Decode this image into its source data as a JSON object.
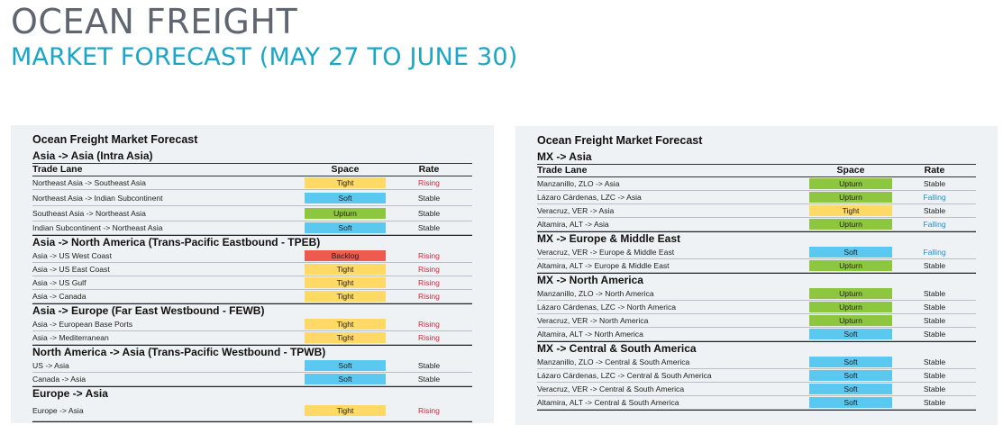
{
  "header": {
    "title": "OCEAN FREIGHT",
    "subtitle": "MARKET FORECAST (MAY 27 TO JUNE 30)"
  },
  "colors": {
    "Tight": "#ffd966",
    "Soft": "#5bc8ef",
    "Upturn": "#8dc63f",
    "Backlog": "#ef5a4e"
  },
  "panels": [
    {
      "title": "Ocean Freight Market Forecast",
      "columns": [
        "Trade Lane",
        "Space",
        "Rate"
      ],
      "sections": [
        {
          "title": "Asia -> Asia (Intra Asia)",
          "show_columns": true,
          "rows": [
            {
              "lane": "Northeast Asia -> Southeast Asia",
              "space": "Tight",
              "rate": "Rising",
              "h": 14
            },
            {
              "lane": "Northeast Asia -> Indian Subcontinent",
              "space": "Soft",
              "rate": "Stable",
              "h": 17
            },
            {
              "lane": "Southeast Asia -> Northeast Asia",
              "space": "Upturn",
              "rate": "Stable",
              "h": 16
            },
            {
              "lane": "Indian Subcontinent -> Northeast Asia",
              "space": "Soft",
              "rate": "Stable",
              "h": 14
            }
          ]
        },
        {
          "title": "Asia -> North America (Trans-Pacific Eastbound - TPEB)",
          "rows": [
            {
              "lane": "Asia -> US West Coast",
              "space": "Backlog",
              "rate": "Rising",
              "h": 14
            },
            {
              "lane": "Asia -> US East Coast",
              "space": "Tight",
              "rate": "Rising",
              "h": 14
            },
            {
              "lane": "Asia -> US Gulf",
              "space": "Tight",
              "rate": "Rising",
              "h": 14
            },
            {
              "lane": "Asia -> Canada",
              "space": "Tight",
              "rate": "Rising",
              "h": 14
            }
          ]
        },
        {
          "title": "Asia -> Europe (Far East Westbound - FEWB)",
          "rows": [
            {
              "lane": "Asia -> European Base Ports",
              "space": "Tight",
              "rate": "Rising",
              "h": 14
            },
            {
              "lane": "Asia -> Mediterranean",
              "space": "Tight",
              "rate": "Rising",
              "h": 14
            }
          ]
        },
        {
          "title": "North America  -> Asia (Trans-Pacific Westbound - TPWB)",
          "rows": [
            {
              "lane": "US -> Asia",
              "space": "Soft",
              "rate": "Stable",
              "h": 14
            },
            {
              "lane": "Canada -> Asia",
              "space": "Soft",
              "rate": "Stable",
              "h": 14
            }
          ]
        },
        {
          "title": "Europe -> Asia",
          "rows": [
            {
              "lane": "Europe -> Asia",
              "space": "Tight",
              "rate": "Rising",
              "h": 22
            }
          ]
        }
      ]
    },
    {
      "title": "Ocean Freight Market Forecast",
      "columns": [
        "Trade Lane",
        "Space",
        "Rate"
      ],
      "sections": [
        {
          "title": "MX -> Asia",
          "show_columns": true,
          "rows": [
            {
              "lane": "Manzanillo, ZLO -> Asia",
              "space": "Upturn",
              "rate": "Stable",
              "h": 14
            },
            {
              "lane": "Lázaro Cárdenas, LZC -> Asia",
              "space": "Upturn",
              "rate": "Falling",
              "h": 14
            },
            {
              "lane": "Veracruz, VER -> Asia",
              "space": "Tight",
              "rate": "Stable",
              "h": 14
            },
            {
              "lane": "Altamira, ALT -> Asia",
              "space": "Upturn",
              "rate": "Falling",
              "h": 14
            }
          ]
        },
        {
          "title": "MX -> Europe & Middle East",
          "rows": [
            {
              "lane": "Veracruz, VER -> Europe & Middle East",
              "space": "Soft",
              "rate": "Falling",
              "h": 14
            },
            {
              "lane": "Altamira, ALT -> Europe & Middle East",
              "space": "Upturn",
              "rate": "Stable",
              "h": 14
            }
          ]
        },
        {
          "title": "MX -> North America",
          "rows": [
            {
              "lane": "Manzanillo, ZLO -> North America",
              "space": "Upturn",
              "rate": "Stable",
              "h": 14
            },
            {
              "lane": "Lázaro Cárdenas, LZC -> North America",
              "space": "Upturn",
              "rate": "Stable",
              "h": 14
            },
            {
              "lane": "Veracruz, VER -> North America",
              "space": "Upturn",
              "rate": "Stable",
              "h": 14
            },
            {
              "lane": "Altamira, ALT -> North America",
              "space": "Soft",
              "rate": "Stable",
              "h": 14
            }
          ]
        },
        {
          "title": "MX -> Central & South America",
          "rows": [
            {
              "lane": "Manzanillo, ZLO -> Central & South America",
              "space": "Soft",
              "rate": "Stable",
              "h": 14
            },
            {
              "lane": "Lázaro Cárdenas, LZC -> Central & South America",
              "space": "Soft",
              "rate": "Stable",
              "h": 14
            },
            {
              "lane": "Veracruz, VER -> Central & South America",
              "space": "Soft",
              "rate": "Stable",
              "h": 14
            },
            {
              "lane": "Altamira, ALT -> Central & South America",
              "space": "Soft",
              "rate": "Stable",
              "h": 14
            }
          ]
        }
      ]
    }
  ]
}
